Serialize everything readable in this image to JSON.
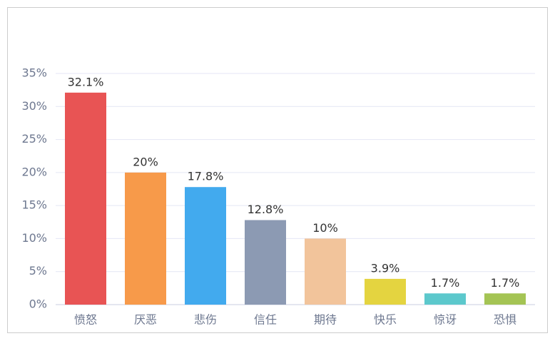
{
  "chart_data": {
    "type": "bar",
    "categories": [
      "愤怒",
      "厌恶",
      "悲伤",
      "信任",
      "期待",
      "快乐",
      "惊讶",
      "恐惧"
    ],
    "values": [
      32.1,
      20,
      17.8,
      12.8,
      10,
      3.9,
      1.7,
      1.7
    ],
    "value_labels": [
      "32.1%",
      "20%",
      "17.8%",
      "12.8%",
      "10%",
      "3.9%",
      "1.7%",
      "1.7%"
    ],
    "colors": [
      "#e85454",
      "#f79a4a",
      "#42aaee",
      "#8c9ab3",
      "#f2c49b",
      "#e4d440",
      "#5cc8cc",
      "#a4c454"
    ],
    "ylim": [
      0,
      35
    ],
    "yticks": [
      {
        "value": 0,
        "label": "0%"
      },
      {
        "value": 5,
        "label": "5%"
      },
      {
        "value": 10,
        "label": "10%"
      },
      {
        "value": 15,
        "label": "15%"
      },
      {
        "value": 20,
        "label": "20%"
      },
      {
        "value": 25,
        "label": "25%"
      },
      {
        "value": 30,
        "label": "30%"
      },
      {
        "value": 35,
        "label": "35%"
      }
    ],
    "grid": true
  }
}
